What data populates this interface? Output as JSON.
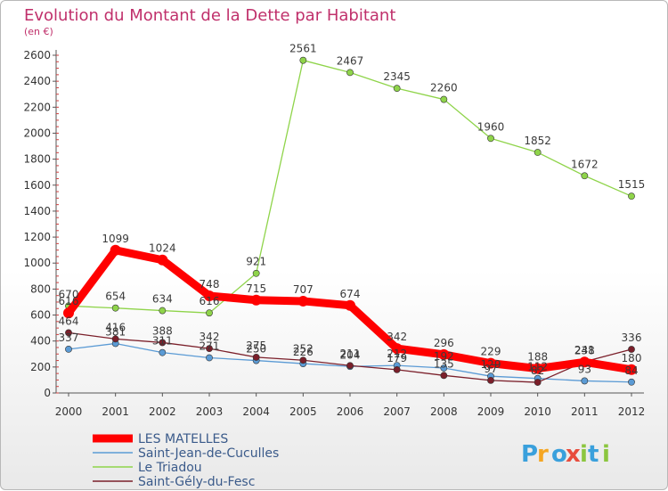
{
  "chart_data": {
    "type": "line",
    "title": "Evolution du Montant de la Dette par Habitant",
    "subtitle": "(en €)",
    "xlabel": "",
    "ylabel": "",
    "x": [
      "2000",
      "2001",
      "2002",
      "2003",
      "2004",
      "2005",
      "2006",
      "2007",
      "2008",
      "2009",
      "2010",
      "2011",
      "2012"
    ],
    "ylim": [
      0,
      2600
    ],
    "yticks": [
      0,
      200,
      400,
      600,
      800,
      1000,
      1200,
      1400,
      1600,
      1800,
      2000,
      2200,
      2400,
      2600
    ],
    "grid": false,
    "legend_position": "bottom-left",
    "series": [
      {
        "name": "LES MATELLES",
        "color": "#ff0000",
        "values": [
          616,
          1099,
          1024,
          748,
          715,
          707,
          674,
          342,
          296,
          229,
          188,
          238,
          180
        ],
        "labels": [
          "616",
          "1099",
          "1024",
          "748",
          "715",
          "707",
          "674",
          "342",
          "296",
          "229",
          "188",
          "238",
          "180"
        ]
      },
      {
        "name": "Saint-Jean-de-Cuculles",
        "color": "#5b9bd5",
        "values": [
          337,
          381,
          311,
          271,
          250,
          226,
          204,
          212,
          192,
          129,
          112,
          93,
          84
        ],
        "labels": [
          "337",
          "381",
          "311",
          "271",
          "250",
          "226",
          "204",
          "212",
          "192",
          "129",
          "112",
          "93",
          "84"
        ]
      },
      {
        "name": "Le Triadou",
        "color": "#8fd44a",
        "values": [
          670,
          654,
          634,
          616,
          921,
          2561,
          2467,
          2345,
          2260,
          1960,
          1852,
          1672,
          1515
        ],
        "labels": [
          "670",
          "654",
          "634",
          "616",
          "921",
          "2561",
          "2467",
          "2345",
          "2260",
          "1960",
          "1852",
          "1672",
          "1515"
        ]
      },
      {
        "name": "Saint-Gély-du-Fesc",
        "color": "#7b1f2a",
        "values": [
          464,
          416,
          388,
          342,
          275,
          252,
          211,
          179,
          135,
          97,
          82,
          241,
          336
        ],
        "labels": [
          "464",
          "416",
          "388",
          "342",
          "275",
          "252",
          "211",
          "179",
          "135",
          "97",
          "82",
          "241",
          "336"
        ]
      }
    ]
  },
  "branding": {
    "logo_text": "Proxiti",
    "logo_colors": [
      "#3aa0dc",
      "#f5a623",
      "#3aa0dc",
      "#e84c3d",
      "#8cc63f",
      "#3aa0dc",
      "#8cc63f"
    ]
  }
}
